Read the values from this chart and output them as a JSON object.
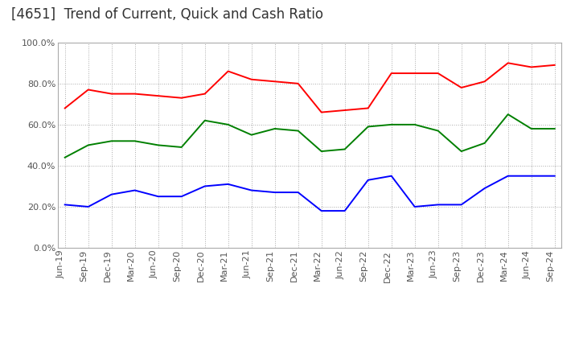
{
  "title": "[4651]  Trend of Current, Quick and Cash Ratio",
  "x_labels": [
    "Jun-19",
    "Sep-19",
    "Dec-19",
    "Mar-20",
    "Jun-20",
    "Sep-20",
    "Dec-20",
    "Mar-21",
    "Jun-21",
    "Sep-21",
    "Dec-21",
    "Mar-22",
    "Jun-22",
    "Sep-22",
    "Dec-22",
    "Mar-23",
    "Jun-23",
    "Sep-23",
    "Dec-23",
    "Mar-24",
    "Jun-24",
    "Sep-24"
  ],
  "current_ratio": [
    68,
    77,
    75,
    75,
    74,
    73,
    75,
    86,
    82,
    81,
    80,
    66,
    67,
    68,
    85,
    85,
    85,
    78,
    81,
    90,
    88,
    89
  ],
  "quick_ratio": [
    44,
    50,
    52,
    52,
    50,
    49,
    62,
    60,
    55,
    58,
    57,
    47,
    48,
    59,
    60,
    60,
    57,
    47,
    51,
    65,
    58,
    58
  ],
  "cash_ratio": [
    21,
    20,
    26,
    28,
    25,
    25,
    30,
    31,
    28,
    27,
    27,
    18,
    18,
    33,
    35,
    20,
    21,
    21,
    29,
    35,
    35,
    35
  ],
  "current_color": "#ff0000",
  "quick_color": "#008000",
  "cash_color": "#0000ff",
  "ylim": [
    0,
    100
  ],
  "yticks": [
    0,
    20,
    40,
    60,
    80,
    100
  ],
  "ytick_labels": [
    "0.0%",
    "20.0%",
    "40.0%",
    "60.0%",
    "80.0%",
    "100.0%"
  ],
  "background_color": "#ffffff",
  "grid_color": "#aaaaaa",
  "title_fontsize": 12,
  "tick_fontsize": 8,
  "legend_fontsize": 9
}
